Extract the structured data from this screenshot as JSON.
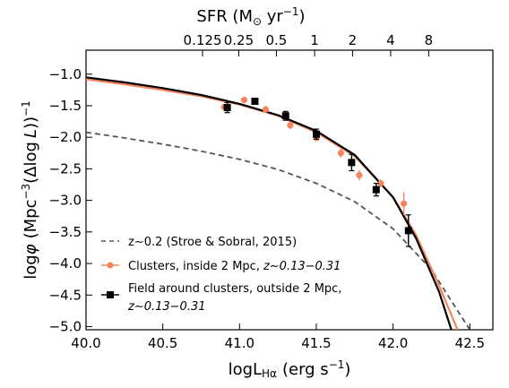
{
  "chart_data": {
    "type": "line",
    "xlabel": "logL",
    "xlabel_sub": "Hα",
    "xlabel_unit": "(erg s",
    "xlabel_unit_sup": "−1",
    "xlabel_unit_end": ")",
    "ylabel_main": "log",
    "ylabel_phi": "φ",
    "ylabel_unit": "(Mpc",
    "ylabel_unit_sup": "−3",
    "ylabel_paren": "(Δlog",
    "ylabel_L": "L",
    "ylabel_end": "))",
    "ylabel_end_sup": "−1",
    "top_label": "SFR (M",
    "top_label_sun": "⊙",
    "top_label_unit": " yr",
    "top_label_sup": "−1",
    "top_label_end": ")",
    "xlim": [
      40.0,
      42.65
    ],
    "ylim": [
      -5.05,
      -0.62
    ],
    "x_ticks": [
      40.0,
      40.5,
      41.0,
      41.5,
      42.0,
      42.5
    ],
    "x_tick_labels": [
      "40.0",
      "40.5",
      "41.0",
      "41.5",
      "42.0",
      "42.5"
    ],
    "y_ticks": [
      -1.0,
      -1.5,
      -2.0,
      -2.5,
      -3.0,
      -3.5,
      -4.0,
      -4.5,
      -5.0
    ],
    "y_tick_labels": [
      "−1.0",
      "−1.5",
      "−2.0",
      "−2.5",
      "−3.0",
      "−3.5",
      "−4.0",
      "−4.5",
      "−5.0"
    ],
    "top_ticks_logL": [
      40.759,
      40.995,
      41.24,
      41.489,
      41.736,
      41.984,
      42.232
    ],
    "top_tick_labels": [
      "0.125",
      "0.25",
      "0.5",
      "1",
      "2",
      "4",
      "8"
    ],
    "colors": {
      "field": "#000000",
      "clusters": "#f4835e",
      "stroe": "#555555"
    },
    "series": [
      {
        "name": "z∼0.2 (Stroe & Sobral, 2015)",
        "kind": "dashed-line",
        "x": [
          40.0,
          40.25,
          40.5,
          40.75,
          41.0,
          41.25,
          41.5,
          41.75,
          42.0,
          42.25,
          42.5
        ],
        "y": [
          -1.92,
          -2.01,
          -2.11,
          -2.22,
          -2.35,
          -2.51,
          -2.73,
          -3.02,
          -3.45,
          -4.1,
          -5.05
        ]
      },
      {
        "name": "Clusters, inside 2 Mpc,",
        "name_z": "z∼0.13−0.31",
        "kind": "points",
        "fit_x": [
          40.0,
          40.25,
          40.5,
          40.75,
          41.0,
          41.25,
          41.5,
          41.75,
          42.0,
          42.15,
          42.3,
          42.42
        ],
        "fit_y": [
          -1.08,
          -1.16,
          -1.25,
          -1.35,
          -1.48,
          -1.66,
          -1.92,
          -2.3,
          -2.95,
          -3.55,
          -4.35,
          -5.05
        ],
        "x": [
          40.9,
          41.03,
          41.17,
          41.33,
          41.5,
          41.66,
          41.78,
          41.92,
          42.07
        ],
        "y": [
          -1.52,
          -1.41,
          -1.56,
          -1.81,
          -2.01,
          -2.25,
          -2.6,
          -2.73,
          -3.05
        ],
        "yerr": [
          0.05,
          0.05,
          0.06,
          0.06,
          0.05,
          0.07,
          0.08,
          0.06,
          0.18
        ]
      },
      {
        "name": "Field around clusters, outside 2 Mpc,",
        "name_z": "z∼0.13−0.31",
        "kind": "points",
        "fit_x": [
          40.0,
          40.25,
          40.5,
          40.75,
          41.0,
          41.25,
          41.5,
          41.75,
          42.0,
          42.15,
          42.3,
          42.38
        ],
        "fit_y": [
          -1.05,
          -1.13,
          -1.22,
          -1.33,
          -1.47,
          -1.65,
          -1.9,
          -2.28,
          -2.95,
          -3.6,
          -4.45,
          -5.05
        ],
        "x": [
          40.92,
          41.1,
          41.3,
          41.5,
          41.73,
          41.89,
          42.1
        ],
        "y": [
          -1.53,
          -1.43,
          -1.66,
          -1.95,
          -2.4,
          -2.83,
          -3.48
        ],
        "yerr": [
          0.08,
          0.04,
          0.07,
          0.08,
          0.13,
          0.1,
          0.25
        ]
      }
    ],
    "legend_position": "lower-left"
  }
}
